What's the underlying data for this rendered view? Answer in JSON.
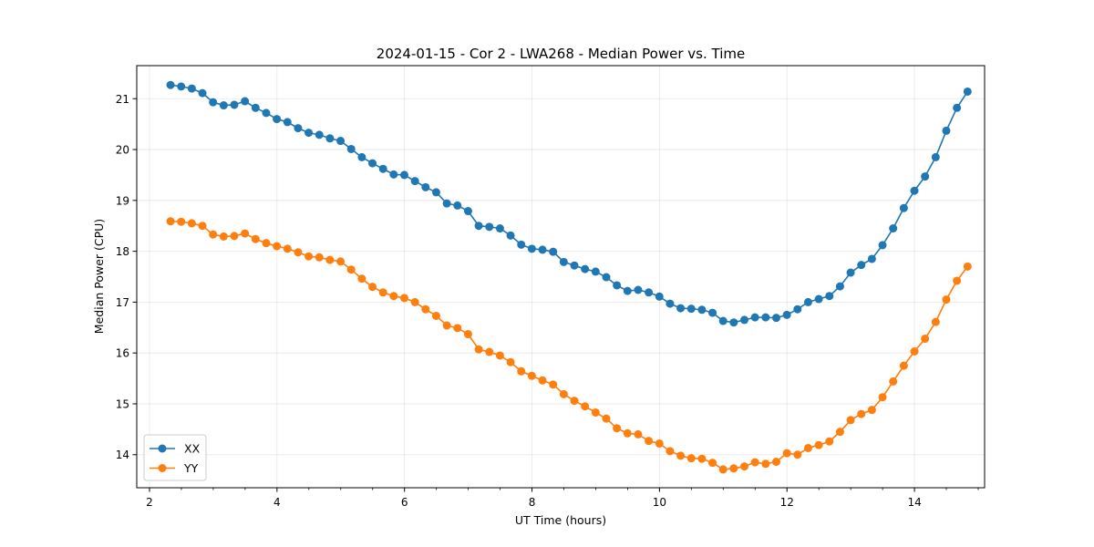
{
  "chart_data": {
    "type": "line",
    "title": "2024-01-15 - Cor 2 - LWA268 - Median Power vs. Time",
    "xlabel": "UT Time (hours)",
    "ylabel": "Median Power (CPU)",
    "xlim": [
      1.8,
      15.1
    ],
    "ylim": [
      13.35,
      21.65
    ],
    "xticks": [
      2,
      4,
      6,
      8,
      10,
      12,
      14
    ],
    "yticks": [
      14,
      15,
      16,
      17,
      18,
      19,
      20,
      21
    ],
    "grid": true,
    "legend_position": "lower-left",
    "x_start": 2.33,
    "x_step": 0.1667,
    "series": [
      {
        "name": "XX",
        "color": "#1f77b4",
        "values": [
          21.27,
          21.24,
          21.2,
          21.11,
          20.93,
          20.87,
          20.88,
          20.95,
          20.82,
          20.72,
          20.6,
          20.54,
          20.42,
          20.33,
          20.29,
          20.22,
          20.17,
          20.01,
          19.85,
          19.73,
          19.62,
          19.51,
          19.5,
          19.38,
          19.26,
          19.16,
          18.94,
          18.9,
          18.79,
          18.5,
          18.48,
          18.45,
          18.31,
          18.13,
          18.05,
          18.03,
          17.99,
          17.79,
          17.72,
          17.65,
          17.6,
          17.49,
          17.33,
          17.22,
          17.24,
          17.19,
          17.11,
          16.97,
          16.88,
          16.87,
          16.85,
          16.79,
          16.63,
          16.6,
          16.65,
          16.7,
          16.7,
          16.69,
          16.75,
          16.86,
          17.0,
          17.06,
          17.12,
          17.31,
          17.58,
          17.73,
          17.85,
          18.12,
          18.45,
          18.85,
          19.19,
          19.47,
          19.85,
          20.37,
          20.82,
          21.14
        ]
      },
      {
        "name": "YY",
        "color": "#ff7f0e",
        "values": [
          18.59,
          18.58,
          18.55,
          18.5,
          18.33,
          18.29,
          18.3,
          18.35,
          18.24,
          18.16,
          18.1,
          18.05,
          17.98,
          17.9,
          17.88,
          17.83,
          17.8,
          17.64,
          17.46,
          17.3,
          17.19,
          17.12,
          17.08,
          17.0,
          16.86,
          16.73,
          16.54,
          16.49,
          16.37,
          16.07,
          16.02,
          15.95,
          15.82,
          15.64,
          15.55,
          15.46,
          15.38,
          15.19,
          15.06,
          14.95,
          14.83,
          14.71,
          14.52,
          14.42,
          14.4,
          14.27,
          14.22,
          14.07,
          13.98,
          13.93,
          13.92,
          13.84,
          13.71,
          13.73,
          13.77,
          13.85,
          13.82,
          13.86,
          14.03,
          14.0,
          14.13,
          14.19,
          14.26,
          14.45,
          14.68,
          14.8,
          14.88,
          15.13,
          15.44,
          15.75,
          16.03,
          16.28,
          16.61,
          17.05,
          17.42,
          17.7
        ]
      }
    ]
  }
}
